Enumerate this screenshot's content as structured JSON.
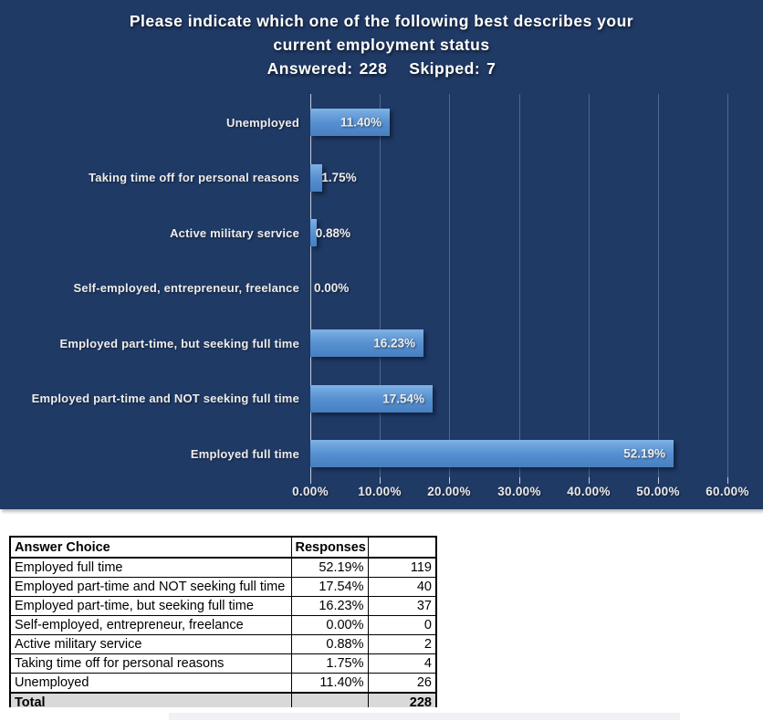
{
  "chart": {
    "title_line1": "Please indicate which one of the following best describes your",
    "title_line2": "current employment status",
    "answered_label": "Answered:",
    "answered_value": "228",
    "skipped_label": "Skipped:",
    "skipped_value": "7"
  },
  "chart_data": {
    "type": "bar",
    "orientation": "horizontal",
    "title": "Please indicate which one of the following best describes your current employment status",
    "subtitle": "Answered: 228   Skipped: 7",
    "categories": [
      "Unemployed",
      "Taking time off for personal reasons",
      "Active military service",
      "Self-employed, entrepreneur, freelance",
      "Employed part-time, but seeking full time",
      "Employed part-time and NOT seeking full time",
      "Employed full time"
    ],
    "values": [
      11.4,
      1.75,
      0.88,
      0.0,
      16.23,
      17.54,
      52.19
    ],
    "value_labels": [
      "11.40%",
      "1.75%",
      "0.88%",
      "0.00%",
      "16.23%",
      "17.54%",
      "52.19%"
    ],
    "x_ticks": [
      "0.00%",
      "10.00%",
      "20.00%",
      "30.00%",
      "40.00%",
      "50.00%",
      "60.00%"
    ],
    "xlim": [
      0,
      60
    ],
    "grid": true,
    "legend_position": "none",
    "colors": {
      "background": "#203A66",
      "bar_gradient_top": "#7FB3E6",
      "bar_gradient_bottom": "#477FBF",
      "gridline": "#4A5F85",
      "text": "#FFFFFF"
    }
  },
  "table": {
    "headers": [
      "Answer Choice",
      "Responses",
      ""
    ],
    "rows": [
      [
        "Employed full time",
        "52.19%",
        "119"
      ],
      [
        "Employed part-time and NOT seeking full time",
        "17.54%",
        "40"
      ],
      [
        "Employed part-time, but seeking full time",
        "16.23%",
        "37"
      ],
      [
        "Self-employed, entrepreneur, freelance",
        "0.00%",
        "0"
      ],
      [
        "Active military service",
        "0.88%",
        "2"
      ],
      [
        "Taking time off for personal reasons",
        "1.75%",
        "4"
      ],
      [
        "Unemployed",
        "11.40%",
        "26"
      ]
    ],
    "total_row": [
      "Total",
      "",
      "228"
    ]
  }
}
